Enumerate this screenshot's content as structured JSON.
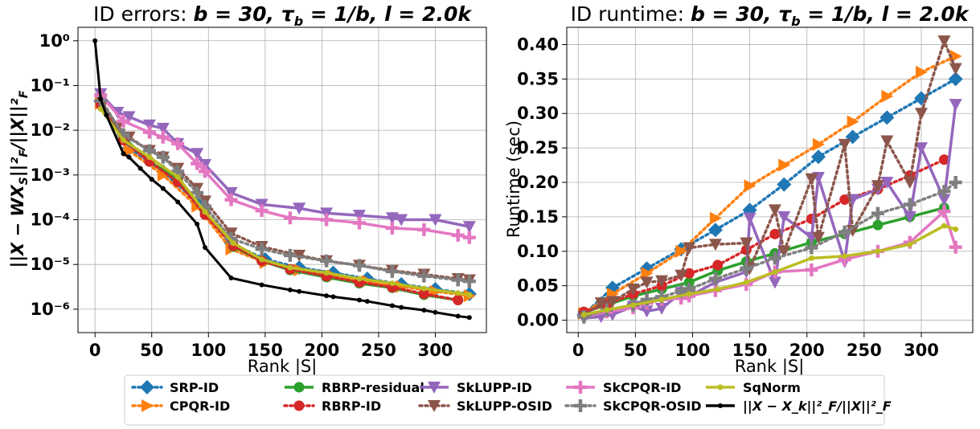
{
  "left": {
    "title_prefix": "ID errors: ",
    "title_math": "b = 30, τ",
    "title_sub": "b",
    "title_rest": " = 1/b, l = 2.0k",
    "ylabel": "||X − WX",
    "ylabel_sub": "S",
    "ylabel_rest": "||²",
    "ylabel_sub2": "F",
    "ylabel_rest2": "/||X||²",
    "ylabel_sub3": "F",
    "xlabel": "Rank |S|",
    "xticks": [
      "0",
      "50",
      "100",
      "150",
      "200",
      "250",
      "300"
    ],
    "yticks": [
      "10⁰",
      "10⁻¹",
      "10⁻²",
      "10⁻³",
      "10⁻⁴",
      "10⁻⁵",
      "10⁻⁶"
    ]
  },
  "right": {
    "title_prefix": "ID runtime: ",
    "title_math": "b = 30, τ",
    "title_sub": "b",
    "title_rest": " = 1/b, l = 2.0k",
    "ylabel": "Runtime (sec)",
    "xlabel": "Rank |S|",
    "xticks": [
      "0",
      "50",
      "100",
      "150",
      "200",
      "250",
      "300"
    ],
    "yticks": [
      "0.00",
      "0.05",
      "0.10",
      "0.15",
      "0.20",
      "0.25",
      "0.30",
      "0.35",
      "0.40"
    ]
  },
  "legend": [
    {
      "label": "SRP-ID",
      "color": "#1f77b4",
      "dash": "dot",
      "marker": "diamond"
    },
    {
      "label": "CPQR-ID",
      "color": "#ff7f0e",
      "dash": "dot",
      "marker": "triangle-right"
    },
    {
      "label": "RBRP-residual",
      "color": "#2ca02c",
      "dash": "solid",
      "marker": "circle"
    },
    {
      "label": "RBRP-ID",
      "color": "#d62728",
      "dash": "dot",
      "marker": "circle"
    },
    {
      "label": "SkLUPP-ID",
      "color": "#9467bd",
      "dash": "solid",
      "marker": "triangle-down"
    },
    {
      "label": "SkLUPP-OSID",
      "color": "#8c564b",
      "dash": "dot",
      "marker": "triangle-down"
    },
    {
      "label": "SkCPQR-ID",
      "color": "#e377c2",
      "dash": "solid",
      "marker": "plus"
    },
    {
      "label": "SkCPQR-OSID",
      "color": "#7f7f7f",
      "dash": "dot",
      "marker": "plus"
    },
    {
      "label": "SqNorm",
      "color": "#bcbd22",
      "dash": "solid",
      "marker": "star"
    },
    {
      "label": "||X − X_k||²_F/||X||²_F",
      "color": "#000000",
      "dash": "solid",
      "marker": "dot"
    }
  ],
  "chart_data": [
    {
      "type": "line",
      "title": "ID errors: b = 30, τ_b = 1/b, l = 2.0k",
      "xlabel": "Rank |S|",
      "ylabel": "||X − WX_S||²_F/||X||²_F",
      "yscale": "log",
      "xlim": [
        -15,
        345
      ],
      "ylim": [
        3e-07,
        2
      ],
      "grid": true,
      "series": [
        {
          "name": "SRP-ID",
          "x": [
            5,
            30,
            60,
            90,
            120,
            150,
            180,
            210,
            240,
            270,
            300,
            330
          ],
          "y": [
            0.045,
            0.004,
            0.0012,
            0.00025,
            3e-05,
            1.3e-05,
            8.5e-06,
            6.5e-06,
            4.8e-06,
            3.6e-06,
            2.8e-06,
            2.2e-06
          ]
        },
        {
          "name": "CPQR-ID",
          "x": [
            5,
            30,
            60,
            90,
            120,
            150,
            180,
            210,
            240,
            270,
            300,
            330
          ],
          "y": [
            0.04,
            0.0035,
            0.001,
            0.0002,
            2.2e-05,
            1.1e-05,
            7.5e-06,
            5.5e-06,
            4.2e-06,
            3.2e-06,
            2.5e-06,
            2e-06
          ]
        },
        {
          "name": "RBRP-residual",
          "x": [
            5,
            25,
            48,
            73,
            97,
            122,
            147,
            172,
            204,
            233,
            262,
            290,
            320
          ],
          "y": [
            0.04,
            0.007,
            0.002,
            0.0008,
            0.00015,
            2.5e-05,
            1.2e-05,
            7.5e-06,
            5.2e-06,
            3.8e-06,
            3e-06,
            2.1e-06,
            1.6e-06
          ]
        },
        {
          "name": "RBRP-ID",
          "x": [
            5,
            25,
            48,
            73,
            97,
            122,
            147,
            172,
            204,
            233,
            262,
            290,
            320
          ],
          "y": [
            0.038,
            0.006,
            0.002,
            0.0007,
            0.00013,
            2.6e-05,
            1.2e-05,
            7.8e-06,
            5.5e-06,
            4e-06,
            3.1e-06,
            2.2e-06,
            1.6e-06
          ]
        },
        {
          "name": "SkLUPP-ID",
          "x": [
            5,
            20,
            30,
            48,
            60,
            73,
            90,
            97,
            120,
            147,
            180,
            204,
            233,
            262,
            270,
            300,
            330
          ],
          "y": [
            0.065,
            0.025,
            0.02,
            0.013,
            0.011,
            0.005,
            0.003,
            0.0017,
            0.0004,
            0.00022,
            0.00018,
            0.00014,
            0.000125,
            0.00011,
            0.0001,
            0.0001,
            7e-05
          ]
        },
        {
          "name": "SkLUPP-OSID",
          "x": [
            5,
            20,
            30,
            48,
            60,
            73,
            90,
            97,
            120,
            147,
            180,
            204,
            233,
            262,
            290,
            320,
            330
          ],
          "y": [
            0.05,
            0.012,
            0.007,
            0.0035,
            0.0025,
            0.0014,
            0.0005,
            0.00026,
            5e-05,
            2.5e-05,
            1.6e-05,
            1.2e-05,
            9.5e-06,
            7.3e-06,
            6e-06,
            4.8e-06,
            4.5e-06
          ]
        },
        {
          "name": "SkCPQR-ID",
          "x": [
            5,
            25,
            48,
            60,
            73,
            90,
            97,
            120,
            147,
            172,
            204,
            233,
            262,
            290,
            320,
            330
          ],
          "y": [
            0.06,
            0.016,
            0.009,
            0.007,
            0.005,
            0.0018,
            0.0012,
            0.00028,
            0.00016,
            0.00011,
            0.0001,
            8.5e-05,
            6.5e-05,
            6e-05,
            4.5e-05,
            4e-05
          ]
        },
        {
          "name": "SkCPQR-OSID",
          "x": [
            5,
            25,
            48,
            60,
            73,
            90,
            97,
            120,
            147,
            172,
            204,
            233,
            262,
            290,
            320,
            330
          ],
          "y": [
            0.045,
            0.008,
            0.0035,
            0.0025,
            0.0012,
            0.0004,
            0.0002,
            3.8e-05,
            2.2e-05,
            1.6e-05,
            1.2e-05,
            9.5e-06,
            7e-06,
            5.5e-06,
            4.5e-06,
            4.2e-06
          ]
        },
        {
          "name": "SqNorm",
          "x": [
            5,
            25,
            48,
            73,
            97,
            122,
            147,
            172,
            204,
            233,
            262,
            290,
            320,
            330
          ],
          "y": [
            0.03,
            0.006,
            0.0025,
            0.0009,
            0.00015,
            3e-05,
            1.3e-05,
            8.5e-06,
            6.5e-06,
            4.8e-06,
            3.8e-06,
            2.9e-06,
            2.3e-06,
            2.1e-06
          ]
        },
        {
          "name": "||X − X_k||²_F/||X||²_F",
          "x": [
            0,
            5,
            10,
            25,
            30,
            40,
            50,
            60,
            73,
            90,
            97,
            120,
            147,
            172,
            180,
            204,
            210,
            233,
            240,
            262,
            270,
            290,
            300,
            320,
            330
          ],
          "y": [
            1,
            0.05,
            0.022,
            0.003,
            0.0025,
            0.0014,
            0.0008,
            0.0005,
            0.00025,
            8e-05,
            2.4e-05,
            5e-06,
            3.5e-06,
            2.7e-06,
            2.5e-06,
            2e-06,
            1.9e-06,
            1.6e-06,
            1.5e-06,
            1.2e-06,
            1.1e-06,
            9.5e-07,
            8.5e-07,
            7e-07,
            6.5e-07
          ]
        }
      ]
    },
    {
      "type": "line",
      "title": "ID runtime: b = 30, τ_b = 1/b, l = 2.0k",
      "xlabel": "Rank |S|",
      "ylabel": "Runtime (sec)",
      "xlim": [
        -10,
        345
      ],
      "ylim": [
        -0.018,
        0.425
      ],
      "grid": true,
      "series": [
        {
          "name": "SRP-ID",
          "x": [
            5,
            30,
            60,
            90,
            120,
            150,
            180,
            210,
            240,
            270,
            300,
            330
          ],
          "y": [
            0.008,
            0.047,
            0.075,
            0.103,
            0.131,
            0.16,
            0.197,
            0.237,
            0.266,
            0.294,
            0.322,
            0.35
          ]
        },
        {
          "name": "CPQR-ID",
          "x": [
            5,
            30,
            60,
            90,
            120,
            150,
            180,
            210,
            240,
            270,
            300,
            330
          ],
          "y": [
            0.01,
            0.038,
            0.068,
            0.1,
            0.148,
            0.195,
            0.225,
            0.255,
            0.288,
            0.325,
            0.36,
            0.383
          ]
        },
        {
          "name": "RBRP-residual",
          "x": [
            5,
            25,
            48,
            73,
            97,
            122,
            147,
            172,
            204,
            233,
            262,
            290,
            320
          ],
          "y": [
            0.012,
            0.022,
            0.035,
            0.045,
            0.055,
            0.072,
            0.085,
            0.097,
            0.113,
            0.125,
            0.138,
            0.15,
            0.163
          ]
        },
        {
          "name": "RBRP-ID",
          "x": [
            5,
            25,
            48,
            73,
            97,
            122,
            147,
            172,
            204,
            233,
            262,
            290,
            320
          ],
          "y": [
            0.012,
            0.023,
            0.038,
            0.05,
            0.068,
            0.08,
            0.102,
            0.125,
            0.147,
            0.175,
            0.19,
            0.21,
            0.233
          ]
        },
        {
          "name": "SkLUPP-ID",
          "x": [
            5,
            20,
            30,
            48,
            60,
            73,
            90,
            97,
            120,
            147,
            150,
            172,
            180,
            204,
            210,
            233,
            240,
            262,
            270,
            290,
            300,
            320,
            330
          ],
          "y": [
            0.003,
            0.005,
            0.008,
            0.02,
            0.013,
            0.017,
            0.04,
            0.035,
            0.055,
            0.07,
            0.148,
            0.055,
            0.15,
            0.12,
            0.207,
            0.085,
            0.175,
            0.19,
            0.2,
            0.15,
            0.25,
            0.175,
            0.313
          ]
        },
        {
          "name": "SkLUPP-OSID",
          "x": [
            5,
            20,
            30,
            48,
            60,
            73,
            90,
            97,
            120,
            147,
            150,
            172,
            180,
            204,
            210,
            233,
            240,
            262,
            270,
            290,
            300,
            320,
            330
          ],
          "y": [
            0.005,
            0.025,
            0.027,
            0.045,
            0.055,
            0.057,
            0.065,
            0.105,
            0.11,
            0.112,
            0.075,
            0.16,
            0.1,
            0.205,
            0.12,
            0.255,
            0.13,
            0.195,
            0.26,
            0.2,
            0.3,
            0.405,
            0.365
          ]
        },
        {
          "name": "SkCPQR-ID",
          "x": [
            5,
            25,
            48,
            60,
            73,
            90,
            97,
            120,
            147,
            172,
            204,
            233,
            262,
            290,
            320,
            330
          ],
          "y": [
            0.005,
            0.012,
            0.018,
            0.025,
            0.03,
            0.032,
            0.035,
            0.043,
            0.052,
            0.07,
            0.073,
            0.088,
            0.1,
            0.113,
            0.158,
            0.106
          ]
        },
        {
          "name": "SkCPQR-OSID",
          "x": [
            5,
            25,
            48,
            60,
            73,
            90,
            97,
            120,
            147,
            172,
            204,
            233,
            262,
            290,
            320,
            330
          ],
          "y": [
            0.005,
            0.015,
            0.022,
            0.03,
            0.034,
            0.042,
            0.045,
            0.06,
            0.075,
            0.09,
            0.105,
            0.128,
            0.155,
            0.168,
            0.187,
            0.2
          ]
        },
        {
          "name": "SqNorm",
          "x": [
            5,
            25,
            48,
            73,
            97,
            122,
            147,
            172,
            204,
            233,
            262,
            290,
            320,
            330
          ],
          "y": [
            0.008,
            0.015,
            0.022,
            0.03,
            0.038,
            0.045,
            0.055,
            0.07,
            0.09,
            0.093,
            0.1,
            0.11,
            0.137,
            0.132
          ]
        }
      ]
    }
  ]
}
